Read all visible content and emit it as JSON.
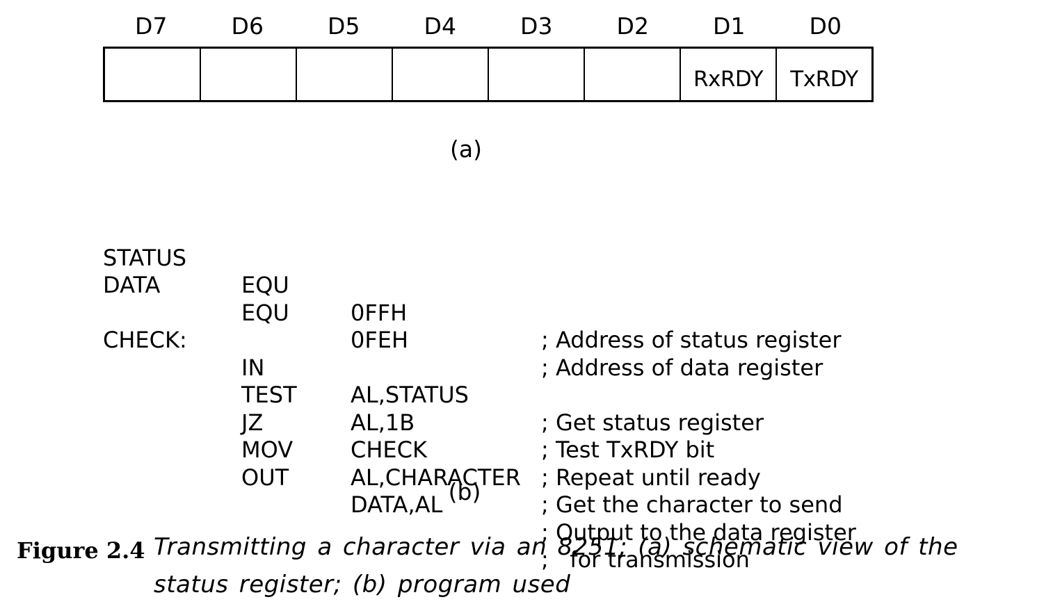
{
  "register": {
    "bits": [
      {
        "label": "D7",
        "name": ""
      },
      {
        "label": "D6",
        "name": ""
      },
      {
        "label": "D5",
        "name": ""
      },
      {
        "label": "D4",
        "name": ""
      },
      {
        "label": "D3",
        "name": ""
      },
      {
        "label": "D2",
        "name": ""
      },
      {
        "label": "D1",
        "name": "RxRDY"
      },
      {
        "label": "D0",
        "name": "TxRDY"
      }
    ],
    "caption": "(a)"
  },
  "program": {
    "lines": [
      {
        "label": "STATUS",
        "op": "EQU",
        "arg": "0FFH",
        "comment": "; Address of status register"
      },
      {
        "label": "DATA",
        "op": "EQU",
        "arg": "0FEH",
        "comment": "; Address of data register"
      },
      {
        "label": "",
        "op": "",
        "arg": "",
        "comment": ""
      },
      {
        "label": "CHECK:",
        "op": "IN",
        "arg": "AL,STATUS",
        "comment": "; Get status register"
      },
      {
        "label": "",
        "op": "TEST",
        "arg": "AL,1B",
        "comment": "; Test TxRDY bit"
      },
      {
        "label": "",
        "op": "JZ",
        "arg": "CHECK",
        "comment": "; Repeat until ready"
      },
      {
        "label": "",
        "op": "MOV",
        "arg": "AL,CHARACTER",
        "comment": "; Get the character to send"
      },
      {
        "label": "",
        "op": "OUT",
        "arg": "DATA,AL",
        "comment": "; Output to the data register"
      },
      {
        "label": "",
        "op": "",
        "arg": "",
        "comment": ";   for transmission"
      }
    ],
    "caption": "(b)"
  },
  "figure": {
    "number": "Figure 2.4",
    "text": "Transmitting a character via an 8251; (a) schematic view of the status register; (b) program used"
  }
}
